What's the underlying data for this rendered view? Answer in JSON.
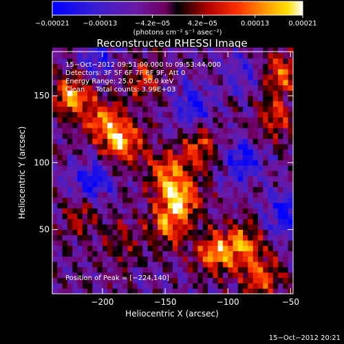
{
  "chart_data": {
    "type": "heatmap",
    "title": "Reconstructed RHESSI Image",
    "xlabel": "Heliocentric X (arcsec)",
    "ylabel": "Heliocentric Y (arcsec)",
    "xlim": [
      -240,
      -48
    ],
    "ylim": [
      2,
      183
    ],
    "x_ticks": [
      -200,
      -150,
      -100,
      -50
    ],
    "y_ticks": [
      50,
      100,
      150
    ],
    "x_tick_labels": [
      "−200",
      "−150",
      "−100",
      "−50"
    ],
    "y_tick_labels": [
      "50",
      "100",
      "150"
    ],
    "colorbar": {
      "range": [
        -0.00021,
        0.00021
      ],
      "tick_values": [
        -0.00021,
        -0.00013,
        -4.2e-05,
        4.2e-05,
        0.00013,
        0.00021
      ],
      "tick_labels": [
        "−0.00021",
        "−0.00013",
        "−4.2e−05",
        "4.2e−05",
        "0.00013",
        "0.00021"
      ],
      "units_label": "(photons cm⁻² s⁻¹ asec⁻²)"
    },
    "annotations": [
      "15−Oct−2012 09:51:00.000 to 09:53:44.000",
      "Detectors: 3F 5F 6F 7F 8F 9F, Att 0",
      "Energy Range: 25.0 − 50.0 keV",
      "Clean     Total counts: 3.99E+03"
    ],
    "peak_label": "Position of Peak = [−224,140]",
    "peak_position": [
      -224,
      140
    ],
    "timestamp": "15−Oct−2012 20:21",
    "grid": false,
    "hotspots": [
      {
        "x": -225,
        "y": 147,
        "value": 0.0002
      },
      {
        "x": -200,
        "y": 128,
        "value": 0.00017
      },
      {
        "x": -185,
        "y": 112,
        "value": 0.00019
      },
      {
        "x": -170,
        "y": 160,
        "value": 0.00012
      },
      {
        "x": -150,
        "y": 90,
        "value": 0.00016
      },
      {
        "x": -140,
        "y": 70,
        "value": 0.0002
      },
      {
        "x": -150,
        "y": 50,
        "value": 0.00015
      },
      {
        "x": -125,
        "y": 110,
        "value": 0.00014
      },
      {
        "x": -112,
        "y": 30,
        "value": 0.00018
      },
      {
        "x": -90,
        "y": 38,
        "value": 0.00017
      },
      {
        "x": -60,
        "y": 165,
        "value": 0.00016
      },
      {
        "x": -65,
        "y": 130,
        "value": 0.00012
      },
      {
        "x": -75,
        "y": 12,
        "value": 0.00015
      },
      {
        "x": -220,
        "y": 58,
        "value": 9e-05
      },
      {
        "x": -185,
        "y": 40,
        "value": 8e-05
      }
    ],
    "coldspots": [
      {
        "x": -210,
        "y": 85,
        "value": -0.00015
      },
      {
        "x": -130,
        "y": 140,
        "value": -0.00013
      },
      {
        "x": -90,
        "y": 100,
        "value": -0.00014
      },
      {
        "x": -205,
        "y": 175,
        "value": -0.0001
      },
      {
        "x": -55,
        "y": 60,
        "value": -0.00015
      },
      {
        "x": -90,
        "y": 165,
        "value": -8e-05
      }
    ]
  }
}
